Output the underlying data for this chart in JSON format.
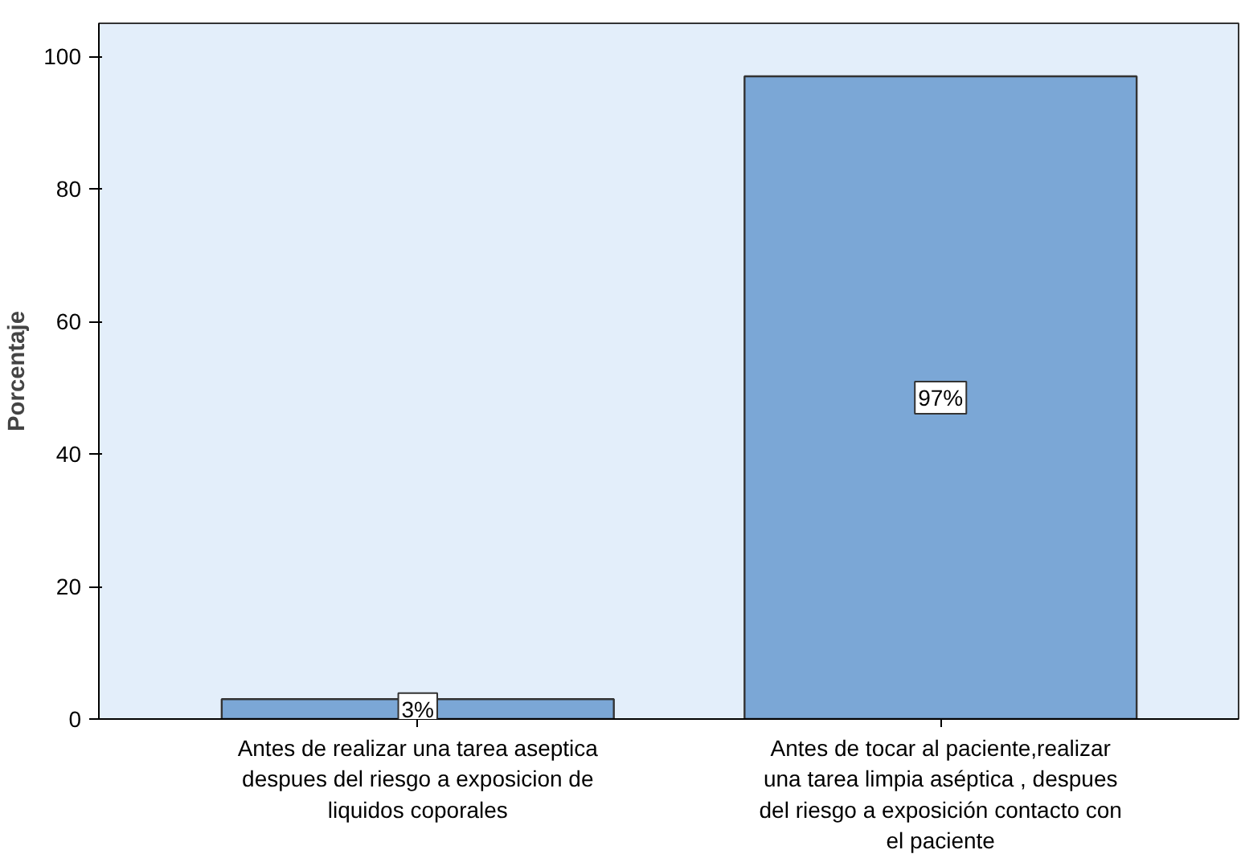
{
  "chart_data": {
    "type": "bar",
    "ylabel": "Porcentaje",
    "categories": [
      "Antes de realizar una tarea aseptica despues del riesgo a exposicion de liquidos coporales",
      "Antes de tocar al paciente,realizar una tarea limpia aséptica , despues del riesgo a exposición contacto con el paciente"
    ],
    "values": [
      3,
      97
    ],
    "value_labels": [
      "3%",
      "97%"
    ],
    "color": "#7ba7d6",
    "ylim": [
      0,
      105
    ],
    "yticks": [
      0,
      20,
      40,
      60,
      80,
      100
    ],
    "grid": false
  }
}
